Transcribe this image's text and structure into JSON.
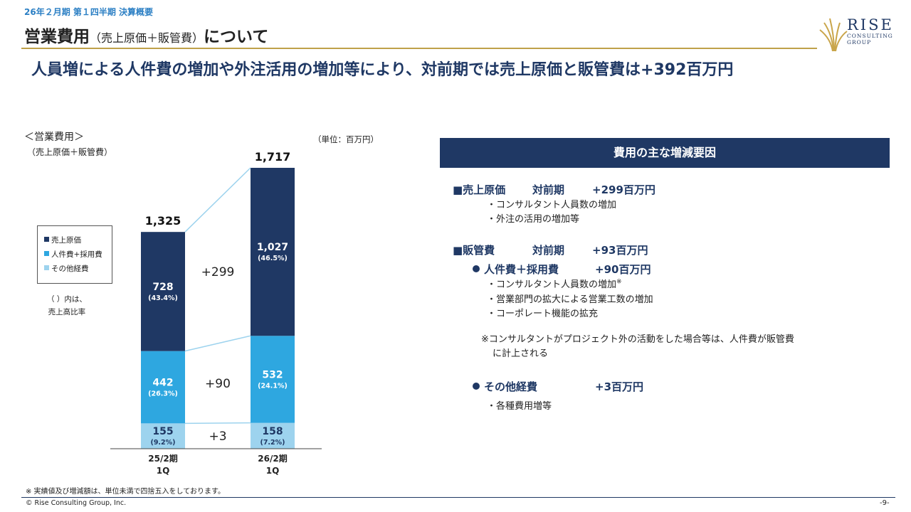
{
  "header": {
    "subtitle": "26年２月期 第１四半期 決算概要",
    "title_main": "営業費用",
    "title_paren": "（売上原価＋販管費）",
    "title_suffix": "について",
    "logo_name": "RISE",
    "logo_sub1": "CONSULTING",
    "logo_sub2": "GROUP",
    "logo_color": "#c9a54a"
  },
  "headline": "人員増による人件費の増加や外注活用の増加等により、対前期では売上原価と販管費は+392百万円",
  "chart_section": {
    "title": "＜営業費用＞",
    "subtitle": "（売上原価＋販管費）",
    "unit": "（単位：百万円）",
    "ratio_note_1": "（ ）内は、",
    "ratio_note_2": "売上高比率"
  },
  "chart_data": {
    "type": "bar",
    "stacked": true,
    "categories": [
      "25/2期\n1Q",
      "26/2期\n1Q"
    ],
    "category_lines": [
      [
        "25/2期",
        "1Q"
      ],
      [
        "26/2期",
        "1Q"
      ]
    ],
    "totals": [
      "1,325",
      "1,717"
    ],
    "series": [
      {
        "name": "その他経費",
        "values": [
          155,
          158
        ],
        "labels": [
          "155",
          "158"
        ],
        "ratios": [
          "(9.2%)",
          "(7.2%)"
        ],
        "color": "#9dd3ee",
        "label_color": "#1f3864"
      },
      {
        "name": "人件費+採用費",
        "values": [
          442,
          532
        ],
        "labels": [
          "442",
          "532"
        ],
        "ratios": [
          "(26.3%)",
          "(24.1%)"
        ],
        "color": "#2ea7e0",
        "label_color": "#ffffff"
      },
      {
        "name": "売上原価",
        "values": [
          728,
          1027
        ],
        "labels": [
          "728",
          "1,027"
        ],
        "ratios": [
          "(43.4%)",
          "(46.5%)"
        ],
        "color": "#1f3864",
        "label_color": "#ffffff"
      }
    ],
    "differences": [
      "+3",
      "+90",
      "+299"
    ],
    "legend_order": [
      "売上原価",
      "人件費+採用費",
      "その他経費"
    ],
    "legend_position": "left",
    "ylim": [
      0,
      1717
    ],
    "grid": false
  },
  "panel": {
    "title": "費用の主な増減要因",
    "cost_of_sales": {
      "label": "■売上原価",
      "period": "対前期",
      "amount": "+299百万円",
      "bullets": [
        "・コンサルタント人員数の増加",
        "・外注の活用の増加等"
      ]
    },
    "sga": {
      "label": "■販管費",
      "period": "対前期",
      "amount": "+93百万円"
    },
    "personnel": {
      "label": "人件費＋採用費",
      "amount": "+90百万円",
      "bullet1": "・コンサルタント人員数の増加",
      "bullet1_mark": "※",
      "bullet2": "・営業部門の拡大による営業工数の増加",
      "bullet3": "・コーポレート機能の拡充"
    },
    "note_line1": "※コンサルタントがプロジェクト外の活動をした場合等は、人件費が販管費",
    "note_line2": "に計上される",
    "other": {
      "label": "その他経費",
      "amount": "+3百万円",
      "bullet": "・各種費用増等"
    }
  },
  "footer": {
    "note": "※ 実績値及び増減額は、単位未満で四捨五入をしております。",
    "copyright": "© Rise Consulting Group, Inc.",
    "page": "-9-"
  }
}
